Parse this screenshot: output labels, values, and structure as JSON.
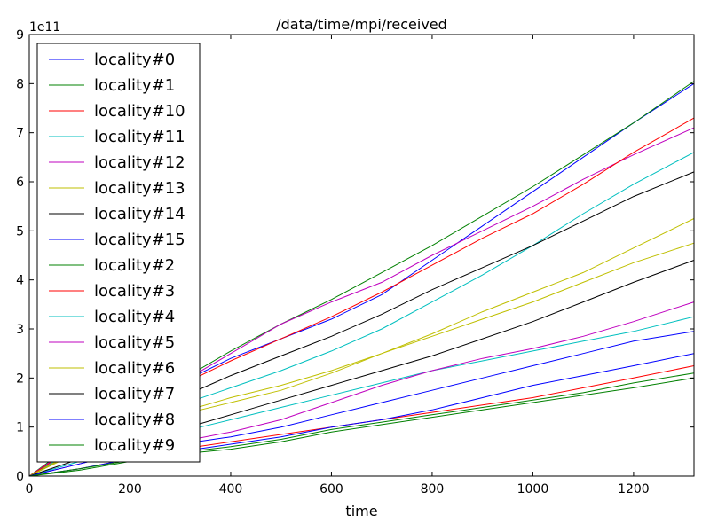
{
  "chart_data": {
    "type": "line",
    "title": "/data/time/mpi/received",
    "xlabel": "time",
    "ylabel": "",
    "y_offset_label": "1e11",
    "xlim": [
      0,
      1320
    ],
    "ylim": [
      0,
      9
    ],
    "x_ticks": [
      "0",
      "200",
      "400",
      "600",
      "800",
      "1000",
      "1200"
    ],
    "y_ticks": [
      "0",
      "1",
      "2",
      "3",
      "4",
      "5",
      "6",
      "7",
      "8",
      "9"
    ],
    "legend_position": "upper-left",
    "grid": false,
    "x": [
      0,
      100,
      200,
      300,
      400,
      500,
      600,
      700,
      800,
      900,
      1000,
      1100,
      1200,
      1320
    ],
    "series": [
      {
        "name": "locality#0",
        "color": "#0000ff",
        "values": [
          0,
          0.7,
          1.35,
          1.9,
          2.4,
          2.8,
          3.2,
          3.7,
          4.4,
          5.1,
          5.8,
          6.5,
          7.2,
          8.0
        ]
      },
      {
        "name": "locality#1",
        "color": "#008000",
        "values": [
          0,
          0.75,
          1.4,
          1.95,
          2.55,
          3.1,
          3.6,
          4.15,
          4.7,
          5.3,
          5.9,
          6.55,
          7.2,
          8.05
        ]
      },
      {
        "name": "locality#10",
        "color": "#ff0000",
        "values": [
          0,
          0.15,
          0.35,
          0.55,
          0.7,
          0.85,
          1.0,
          1.15,
          1.3,
          1.45,
          1.6,
          1.8,
          2.0,
          2.25
        ]
      },
      {
        "name": "locality#11",
        "color": "#00bfbf",
        "values": [
          0,
          0.6,
          1.05,
          1.45,
          1.8,
          2.15,
          2.55,
          3.0,
          3.55,
          4.1,
          4.7,
          5.35,
          5.95,
          6.6
        ]
      },
      {
        "name": "locality#12",
        "color": "#bf00bf",
        "values": [
          0,
          0.7,
          1.35,
          1.9,
          2.5,
          3.1,
          3.55,
          3.95,
          4.5,
          5.0,
          5.5,
          6.05,
          6.55,
          7.1
        ]
      },
      {
        "name": "locality#13",
        "color": "#bfbf00",
        "values": [
          0,
          0.5,
          0.95,
          1.3,
          1.6,
          1.85,
          2.15,
          2.5,
          2.85,
          3.2,
          3.55,
          3.95,
          4.35,
          4.75
        ]
      },
      {
        "name": "locality#14",
        "color": "#000000",
        "values": [
          0,
          0.55,
          1.1,
          1.6,
          2.05,
          2.45,
          2.85,
          3.3,
          3.8,
          4.25,
          4.7,
          5.2,
          5.7,
          6.2
        ]
      },
      {
        "name": "locality#15",
        "color": "#0000ff",
        "values": [
          0,
          0.15,
          0.35,
          0.5,
          0.65,
          0.8,
          1.0,
          1.15,
          1.35,
          1.6,
          1.85,
          2.05,
          2.25,
          2.5
        ]
      },
      {
        "name": "locality#2",
        "color": "#008000",
        "values": [
          0,
          0.12,
          0.3,
          0.45,
          0.55,
          0.7,
          0.9,
          1.05,
          1.2,
          1.35,
          1.5,
          1.65,
          1.8,
          2.0
        ]
      },
      {
        "name": "locality#3",
        "color": "#ff0000",
        "values": [
          0,
          0.65,
          1.25,
          1.85,
          2.35,
          2.8,
          3.25,
          3.75,
          4.3,
          4.85,
          5.35,
          5.95,
          6.6,
          7.3
        ]
      },
      {
        "name": "locality#4",
        "color": "#00bfbf",
        "values": [
          0,
          0.3,
          0.6,
          0.9,
          1.15,
          1.4,
          1.65,
          1.9,
          2.15,
          2.35,
          2.55,
          2.75,
          2.95,
          3.25
        ]
      },
      {
        "name": "locality#5",
        "color": "#bf00bf",
        "values": [
          0,
          0.25,
          0.5,
          0.7,
          0.9,
          1.15,
          1.5,
          1.85,
          2.15,
          2.4,
          2.6,
          2.85,
          3.15,
          3.55
        ]
      },
      {
        "name": "locality#6",
        "color": "#bfbf00",
        "values": [
          0,
          0.55,
          0.95,
          1.25,
          1.5,
          1.75,
          2.1,
          2.5,
          2.9,
          3.35,
          3.75,
          4.15,
          4.65,
          5.25
        ]
      },
      {
        "name": "locality#7",
        "color": "#000000",
        "values": [
          0,
          0.35,
          0.65,
          0.95,
          1.25,
          1.55,
          1.85,
          2.15,
          2.45,
          2.8,
          3.15,
          3.55,
          3.95,
          4.4
        ]
      },
      {
        "name": "locality#8",
        "color": "#0000ff",
        "values": [
          0,
          0.25,
          0.5,
          0.65,
          0.8,
          1.0,
          1.25,
          1.5,
          1.75,
          2.0,
          2.25,
          2.5,
          2.75,
          2.95
        ]
      },
      {
        "name": "locality#9",
        "color": "#008000",
        "values": [
          0,
          0.15,
          0.32,
          0.48,
          0.6,
          0.75,
          0.95,
          1.1,
          1.25,
          1.4,
          1.55,
          1.7,
          1.9,
          2.1
        ]
      }
    ]
  }
}
